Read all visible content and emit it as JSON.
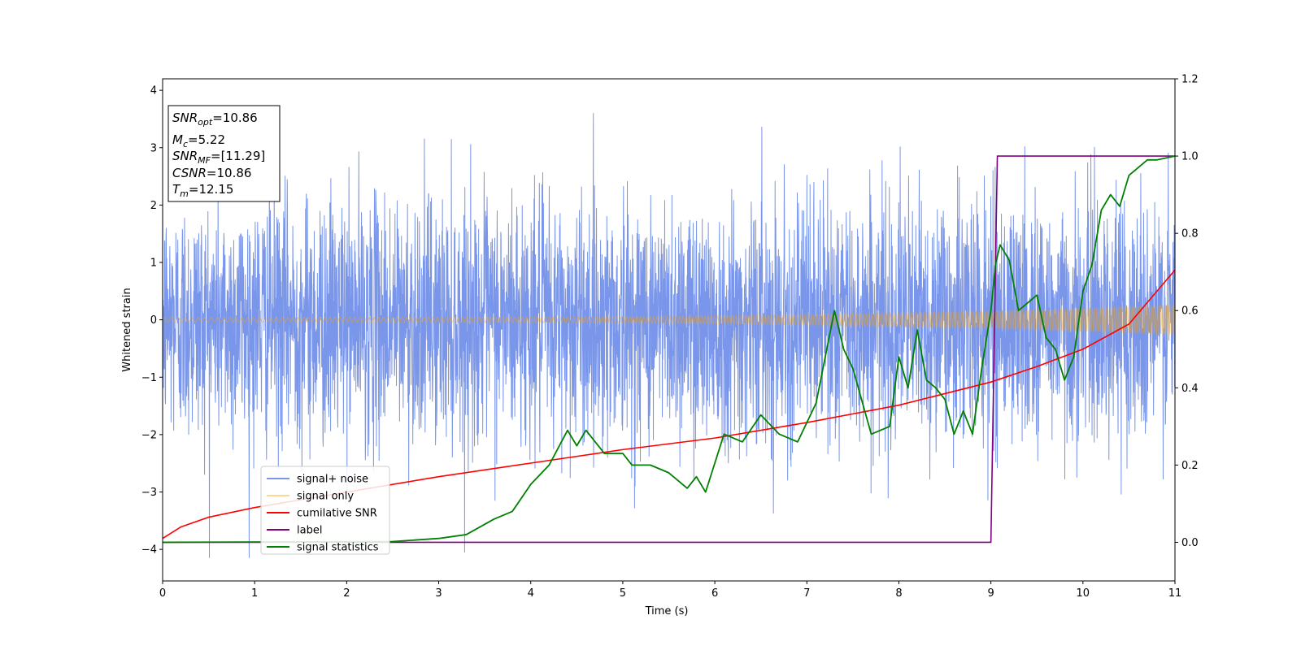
{
  "chart_data": {
    "type": "line",
    "xlabel": "Time (s)",
    "ylabel": "Whitened strain",
    "xlim": [
      0,
      11
    ],
    "ylim_left": [
      -4.55,
      4.2
    ],
    "ylim_right": [
      -0.1,
      1.2
    ],
    "x_ticks": [
      0,
      1,
      2,
      3,
      4,
      5,
      6,
      7,
      8,
      9,
      10,
      11
    ],
    "y_ticks_left": [
      -4,
      -3,
      -2,
      -1,
      0,
      1,
      2,
      3,
      4
    ],
    "y_ticks_right": [
      0.0,
      0.2,
      0.4,
      0.6,
      0.8,
      1.0,
      1.2
    ],
    "grid": false,
    "legend_position": "lower-left",
    "stats_box": [
      {
        "label": "SNR",
        "sub": "opt",
        "value": "=10.86"
      },
      {
        "label": "M",
        "sub": "c",
        "value": "=5.22"
      },
      {
        "label": "SNR",
        "sub": "MF",
        "value": "=[11.29]"
      },
      {
        "label": "CSNR",
        "sub": "",
        "value": "=10.86"
      },
      {
        "label": "T",
        "sub": "m",
        "value": "=12.15"
      }
    ],
    "series": [
      {
        "name": "signal+ noise",
        "axis": "left",
        "color": "#4169E1",
        "kind": "noise",
        "approx_std": 1.05,
        "approx_range": [
          -4.15,
          3.8
        ]
      },
      {
        "name": "signal only",
        "axis": "left",
        "color": "#FFA500",
        "kind": "chirp_envelope",
        "envelope": {
          "x": [
            0,
            2,
            4,
            6,
            7,
            8,
            9,
            10,
            11
          ],
          "y": [
            0.04,
            0.045,
            0.05,
            0.07,
            0.09,
            0.12,
            0.15,
            0.2,
            0.26
          ]
        }
      },
      {
        "name": "cumilative SNR",
        "axis": "right",
        "color": "#FF0000",
        "x": [
          0,
          0.2,
          0.5,
          1,
          2,
          3,
          4,
          5,
          6,
          7,
          8,
          9,
          9.5,
          10,
          10.5,
          11
        ],
        "y": [
          0.01,
          0.04,
          0.065,
          0.09,
          0.13,
          0.17,
          0.205,
          0.24,
          0.27,
          0.31,
          0.355,
          0.415,
          0.455,
          0.5,
          0.565,
          0.705
        ]
      },
      {
        "name": "label",
        "axis": "right",
        "color": "#800080",
        "x": [
          0,
          9.0,
          9.07,
          11
        ],
        "y": [
          0,
          0,
          1,
          1
        ]
      },
      {
        "name": "signal statistics",
        "axis": "right",
        "color": "#008000",
        "x": [
          0,
          2.5,
          3.0,
          3.3,
          3.6,
          3.8,
          4.0,
          4.2,
          4.4,
          4.5,
          4.6,
          4.8,
          5.0,
          5.1,
          5.3,
          5.5,
          5.7,
          5.8,
          5.9,
          6.1,
          6.3,
          6.5,
          6.7,
          6.9,
          7.1,
          7.3,
          7.4,
          7.5,
          7.7,
          7.9,
          8.0,
          8.1,
          8.2,
          8.3,
          8.4,
          8.5,
          8.6,
          8.7,
          8.8,
          8.9,
          9.0,
          9.05,
          9.1,
          9.2,
          9.3,
          9.4,
          9.5,
          9.6,
          9.7,
          9.8,
          9.9,
          10.0,
          10.1,
          10.2,
          10.3,
          10.4,
          10.5,
          10.6,
          10.7,
          10.8,
          11.0
        ],
        "y": [
          0,
          0.002,
          0.01,
          0.02,
          0.06,
          0.08,
          0.15,
          0.2,
          0.29,
          0.25,
          0.29,
          0.23,
          0.23,
          0.2,
          0.2,
          0.18,
          0.14,
          0.17,
          0.13,
          0.28,
          0.26,
          0.33,
          0.28,
          0.26,
          0.36,
          0.6,
          0.5,
          0.45,
          0.28,
          0.3,
          0.48,
          0.4,
          0.55,
          0.42,
          0.4,
          0.37,
          0.28,
          0.34,
          0.28,
          0.45,
          0.6,
          0.72,
          0.77,
          0.73,
          0.6,
          0.62,
          0.64,
          0.53,
          0.5,
          0.42,
          0.48,
          0.65,
          0.72,
          0.86,
          0.9,
          0.87,
          0.95,
          0.97,
          0.99,
          0.99,
          1.0
        ]
      }
    ]
  }
}
